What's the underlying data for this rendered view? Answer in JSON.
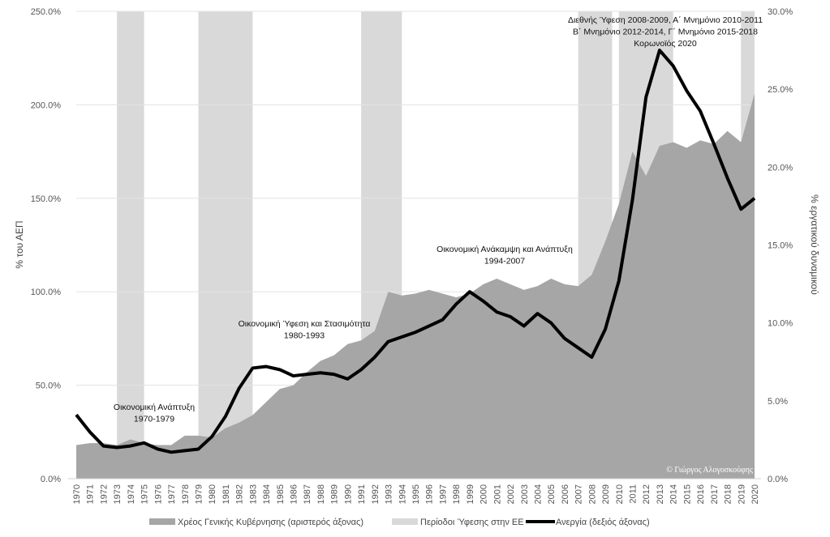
{
  "chart_data": {
    "type": "area+line",
    "x": [
      1970,
      1971,
      1972,
      1973,
      1974,
      1975,
      1976,
      1977,
      1978,
      1979,
      1980,
      1981,
      1982,
      1983,
      1984,
      1985,
      1986,
      1987,
      1988,
      1989,
      1990,
      1991,
      1992,
      1993,
      1994,
      1995,
      1996,
      1997,
      1998,
      1999,
      2000,
      2001,
      2002,
      2003,
      2004,
      2005,
      2006,
      2007,
      2008,
      2009,
      2010,
      2011,
      2012,
      2013,
      2014,
      2015,
      2016,
      2017,
      2018,
      2019,
      2020
    ],
    "series": [
      {
        "name": "Χρέος Γενικής Κυβέρνησης (αριστερός άξονας)",
        "type": "area",
        "axis": "left",
        "color": "#a6a6a6",
        "values": [
          18,
          19,
          19,
          18,
          21,
          19,
          18,
          18,
          23,
          23,
          22,
          27,
          30,
          34,
          41,
          48,
          50,
          57,
          63,
          66,
          72,
          74,
          79,
          100,
          98,
          99,
          101,
          99,
          97,
          99,
          104,
          107,
          104,
          101,
          103,
          107,
          104,
          103,
          109,
          127,
          147,
          175,
          162,
          178,
          180,
          177,
          181,
          179,
          186,
          180,
          206
        ]
      },
      {
        "name": "Ανεργία (δεξιός άξονας)",
        "type": "line",
        "axis": "right",
        "color": "#000000",
        "values": [
          4.1,
          3.0,
          2.1,
          2.0,
          2.1,
          2.3,
          1.9,
          1.7,
          1.8,
          1.9,
          2.7,
          4.0,
          5.8,
          7.1,
          7.2,
          7.0,
          6.6,
          6.7,
          6.8,
          6.7,
          6.4,
          7.0,
          7.8,
          8.8,
          9.1,
          9.4,
          9.8,
          10.2,
          11.2,
          12.0,
          11.4,
          10.7,
          10.4,
          9.8,
          10.6,
          10.0,
          9.0,
          8.4,
          7.8,
          9.6,
          12.7,
          17.9,
          24.5,
          27.5,
          26.5,
          24.9,
          23.6,
          21.5,
          19.3,
          17.3,
          18.0
        ]
      }
    ],
    "recession_periods": {
      "name": "Περίοδοι Ύφεσης στην ΕΕ",
      "color": "#d9d9d9",
      "ranges": [
        [
          1973,
          1975
        ],
        [
          1979,
          1983
        ],
        [
          1991,
          1994
        ],
        [
          2007,
          2009.5
        ],
        [
          2010,
          2014
        ],
        [
          2019,
          2020
        ]
      ]
    },
    "ylabel_left": "% του ΑΕΠ",
    "ylabel_right": "% εργατικού δυναμικού",
    "ylim_left": [
      0,
      250
    ],
    "ylim_right": [
      0,
      30
    ],
    "yticks_left": [
      "0.0%",
      "50.0%",
      "100.0%",
      "150.0%",
      "200.0%",
      "250.0%"
    ],
    "yticks_right": [
      "0.0%",
      "5.0%",
      "10.0%",
      "15.0%",
      "20.0%",
      "25.0%",
      "30.0%"
    ],
    "grid": true,
    "legend_position": "bottom",
    "annotations": [
      {
        "lines": [
          "Οικονομική Ανάπτυξη",
          "1970-1979"
        ]
      },
      {
        "lines": [
          "Οικονομική Ύφεση και Στασιμότητα",
          "1980-1993"
        ]
      },
      {
        "lines": [
          "Οικονομική Ανάκαμψη και Ανάπτυξη",
          "1994-2007"
        ]
      },
      {
        "lines": [
          "Διεθνής Ύφεση 2008-2009, Α΄ Μνημόνιο 2010-2011",
          "Β΄ Μνημόνιο 2012-2014, Γ΄ Μνημόνιο 2015-2018",
          "Κορωνοϊός 2020"
        ]
      }
    ],
    "copyright": "© Γιώργος Αλογοσκούφης"
  }
}
